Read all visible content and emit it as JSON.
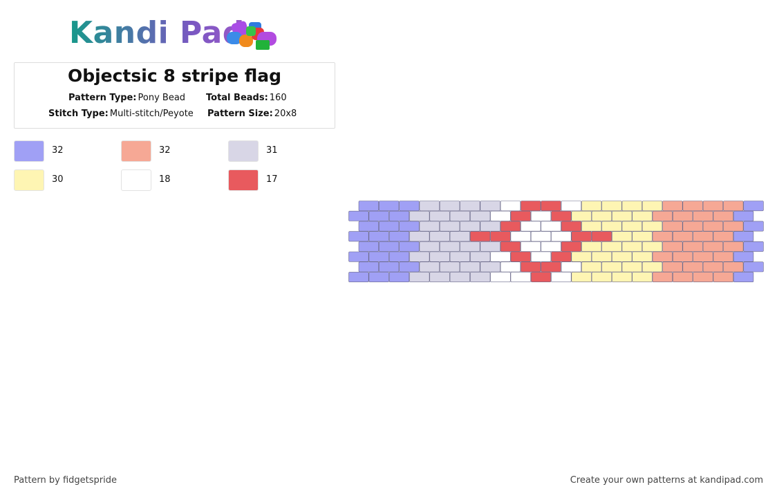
{
  "header": {
    "logo": "Kandi Pad",
    "title": "Objectsic 8 stripe flag",
    "info": [
      {
        "label": "Pattern Type:",
        "value": "Pony Bead"
      },
      {
        "label": "Total Beads:",
        "value": "160"
      },
      {
        "label": "Stitch Type:",
        "value": "Multi-stitch/Peyote"
      },
      {
        "label": "Pattern Size:",
        "value": "20x8"
      }
    ]
  },
  "legend": [
    {
      "color": "#a0a0f5",
      "count": "32"
    },
    {
      "color": "#f6a895",
      "count": "32"
    },
    {
      "color": "#d8d6e6",
      "count": "31"
    },
    {
      "color": "#fef5b3",
      "count": "30"
    },
    {
      "color": "#ffffff",
      "count": "18"
    },
    {
      "color": "#e85a5e",
      "count": "17"
    }
  ],
  "pattern": {
    "rows": [
      [
        0,
        0,
        0,
        2,
        2,
        2,
        2,
        4,
        5,
        5,
        4,
        3,
        3,
        3,
        3,
        1,
        1,
        1,
        1,
        0
      ],
      [
        0,
        0,
        0,
        2,
        2,
        2,
        2,
        4,
        5,
        4,
        5,
        3,
        3,
        3,
        3,
        1,
        1,
        1,
        1,
        0
      ],
      [
        0,
        0,
        0,
        2,
        2,
        2,
        2,
        5,
        4,
        4,
        5,
        3,
        3,
        3,
        3,
        1,
        1,
        1,
        1,
        0
      ],
      [
        0,
        0,
        0,
        2,
        2,
        2,
        5,
        5,
        4,
        4,
        4,
        5,
        5,
        3,
        3,
        1,
        1,
        1,
        1,
        0
      ],
      [
        0,
        0,
        0,
        2,
        2,
        2,
        2,
        5,
        4,
        4,
        5,
        3,
        3,
        3,
        3,
        1,
        1,
        1,
        1,
        0
      ],
      [
        0,
        0,
        0,
        2,
        2,
        2,
        2,
        4,
        5,
        4,
        5,
        3,
        3,
        3,
        3,
        1,
        1,
        1,
        1,
        0
      ],
      [
        0,
        0,
        0,
        2,
        2,
        2,
        2,
        4,
        5,
        5,
        4,
        3,
        3,
        3,
        3,
        1,
        1,
        1,
        1,
        0
      ],
      [
        0,
        0,
        0,
        2,
        2,
        2,
        2,
        4,
        4,
        5,
        4,
        3,
        3,
        3,
        3,
        1,
        1,
        1,
        1,
        0
      ]
    ]
  },
  "footer": {
    "left": "Pattern by fidgetspride",
    "right": "Create your own patterns at kandipad.com"
  }
}
